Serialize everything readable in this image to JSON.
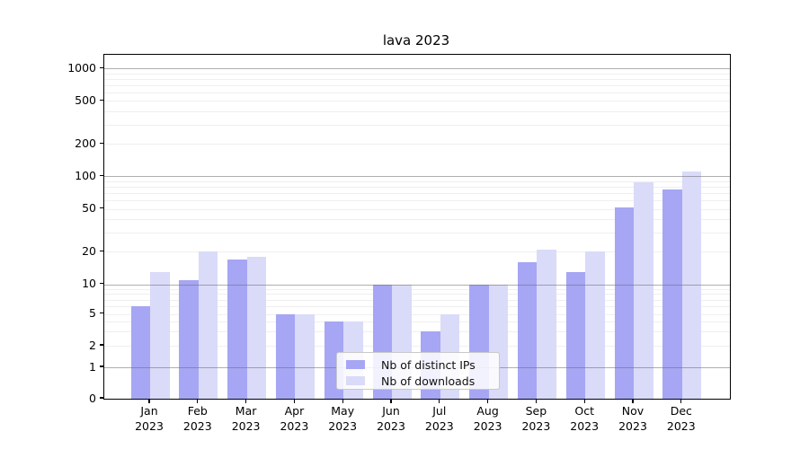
{
  "chart_data": {
    "type": "bar",
    "title": "lava 2023",
    "categories": [
      "Jan",
      "Feb",
      "Mar",
      "Apr",
      "May",
      "Jun",
      "Jul",
      "Aug",
      "Sep",
      "Oct",
      "Nov",
      "Dec"
    ],
    "year_line": "2023",
    "series": [
      {
        "name": "Nb of distinct IPs",
        "color": "#a6a6f4",
        "values": [
          6,
          11,
          17,
          5,
          4,
          10,
          3,
          10,
          16,
          13,
          52,
          75
        ]
      },
      {
        "name": "Nb of downloads",
        "color": "#dadaf9",
        "values": [
          13,
          20,
          18,
          5,
          4,
          10,
          5,
          10,
          21,
          20,
          88,
          110
        ]
      }
    ],
    "yscale": "symlog",
    "ylim": [
      0,
      1000
    ],
    "y_ticks": [
      0,
      1,
      2,
      5,
      10,
      20,
      50,
      100,
      200,
      500,
      1000
    ],
    "y_tick_labels": [
      "0",
      "1",
      "2",
      "5",
      "10",
      "20",
      "50",
      "100",
      "200",
      "500",
      "1000"
    ],
    "grid": true,
    "legend_position": "lower center"
  },
  "colors": {
    "background": "#ffffff",
    "spine": "#000000",
    "major_grid": "#b0b0b0",
    "minor_grid": "#e8e8e8",
    "bar_ips": "#a6a6f4",
    "bar_downloads": "#dadaf9"
  }
}
